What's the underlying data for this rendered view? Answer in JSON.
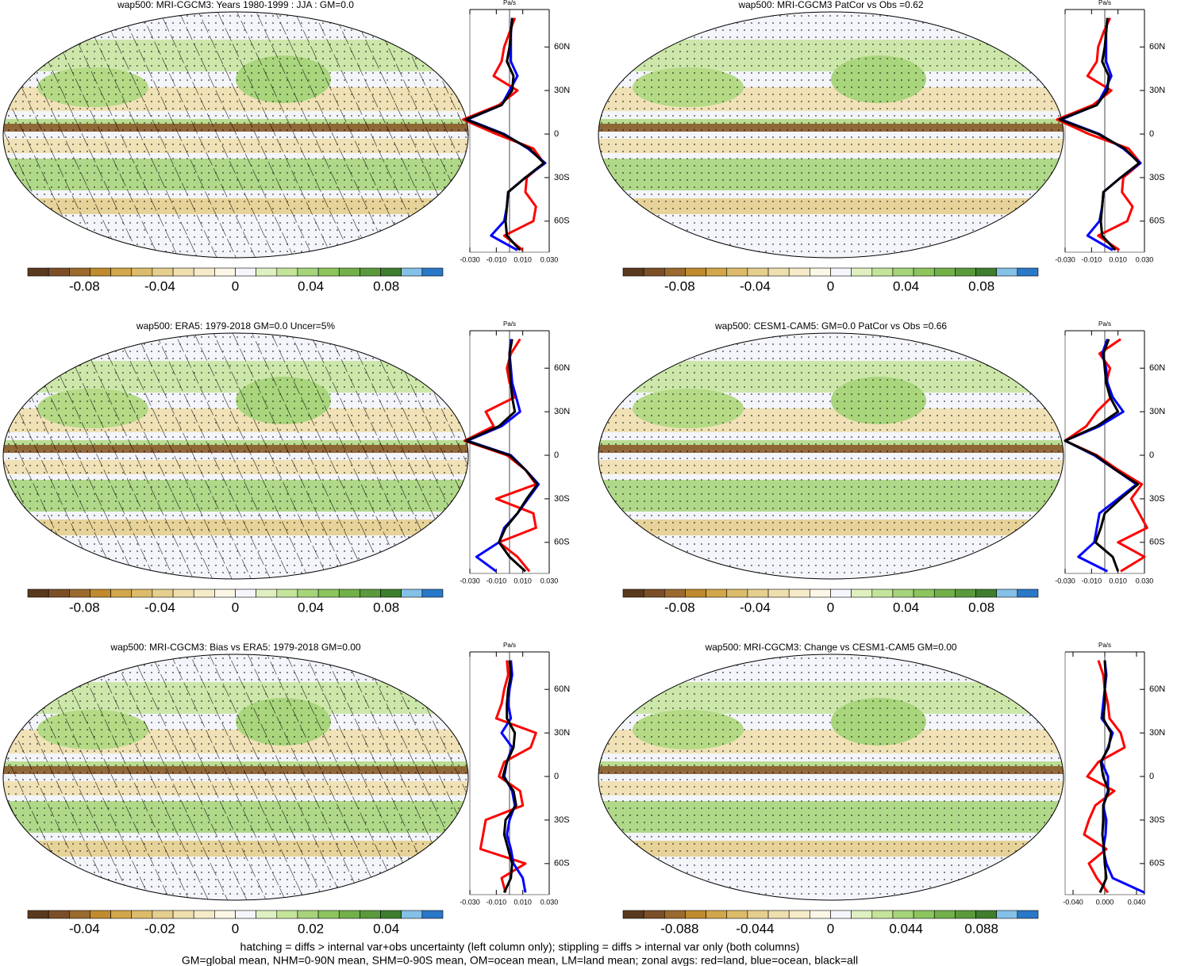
{
  "chart_data": [
    {
      "type": "map",
      "title": "wap500: MRI-CGCM3: Years 1980-1999 : JJA : GM=0.0",
      "hatching": true,
      "stippling": true,
      "colorbar": {
        "lim": [
          -0.11,
          0.11
        ],
        "ticks": [
          -0.08,
          -0.04,
          0,
          0.04,
          0.08
        ]
      },
      "profile": {
        "type": "line",
        "xlabel": "Pa/s",
        "xlim": [
          -0.03,
          0.03
        ],
        "xticks": [
          {
            "value": -0.03,
            "label": "-0.030"
          },
          {
            "value": -0.01,
            "label": "-0.010"
          },
          {
            "value": 0.01,
            "label": "0.010"
          },
          {
            "value": 0.03,
            "label": "0.030"
          }
        ],
        "ylim": [
          -81.4,
          85.8
        ],
        "yticks": [
          {
            "value": 60,
            "label": "60N"
          },
          {
            "value": 30,
            "label": "30N"
          },
          0,
          {
            "value": -30,
            "label": "30S"
          },
          {
            "value": -60,
            "label": "60S"
          }
        ],
        "lats": [
          80,
          70,
          60,
          50,
          40,
          30,
          20,
          10,
          0,
          -10,
          -20,
          -30,
          -40,
          -50,
          -60,
          -70,
          -80
        ],
        "series": [
          {
            "name": "land",
            "color": "#ff0000",
            "values": [
              0.004,
              0.0,
              -0.004,
              -0.006,
              -0.012,
              0.006,
              -0.008,
              -0.035,
              -0.01,
              0.018,
              0.026,
              0.013,
              0.012,
              0.02,
              0.018,
              -0.004,
              0.01
            ]
          },
          {
            "name": "ocean",
            "color": "#0000ff",
            "values": [
              0.002,
              0.001,
              0.001,
              0.001,
              0.006,
              0.0,
              -0.006,
              -0.032,
              -0.004,
              0.014,
              0.027,
              0.012,
              -0.001,
              -0.002,
              -0.004,
              -0.014,
              0.006
            ]
          },
          {
            "name": "all",
            "color": "#000000",
            "values": [
              0.002,
              0.001,
              0.0,
              -0.002,
              0.003,
              0.002,
              -0.006,
              -0.033,
              -0.005,
              0.015,
              0.026,
              0.012,
              -0.001,
              -0.002,
              -0.003,
              -0.002,
              0.008
            ]
          }
        ]
      }
    },
    {
      "type": "map",
      "title": "wap500: MRI-CGCM3 PatCor vs Obs =0.62",
      "hatching": false,
      "stippling": true,
      "colorbar": {
        "lim": [
          -0.11,
          0.11
        ],
        "ticks": [
          -0.08,
          -0.04,
          0,
          0.04,
          0.08
        ]
      },
      "profile": {
        "type": "line",
        "xlabel": "Pa/s",
        "xlim": [
          -0.03,
          0.03
        ],
        "xticks": [
          {
            "value": -0.03,
            "label": "-0.030"
          },
          {
            "value": -0.01,
            "label": "-0.010"
          },
          {
            "value": 0.01,
            "label": "0.010"
          },
          {
            "value": 0.03,
            "label": "0.030"
          }
        ],
        "ylim": [
          -81.4,
          85.8
        ],
        "yticks": [
          {
            "value": 60,
            "label": "60N"
          },
          {
            "value": 30,
            "label": "30N"
          },
          0,
          {
            "value": -30,
            "label": "30S"
          },
          {
            "value": -60,
            "label": "60S"
          }
        ],
        "lats": [
          80,
          70,
          60,
          50,
          40,
          30,
          20,
          10,
          0,
          -10,
          -20,
          -30,
          -40,
          -50,
          -60,
          -70,
          -80
        ],
        "series": [
          {
            "name": "land",
            "color": "#ff0000",
            "values": [
              0.004,
              -0.001,
              -0.005,
              -0.006,
              -0.013,
              0.005,
              -0.009,
              -0.036,
              -0.012,
              0.018,
              0.027,
              0.014,
              0.013,
              0.021,
              0.017,
              -0.005,
              0.011
            ]
          },
          {
            "name": "ocean",
            "color": "#0000ff",
            "values": [
              0.002,
              0.001,
              0.001,
              0.001,
              0.005,
              0.0,
              -0.006,
              -0.033,
              -0.004,
              0.014,
              0.027,
              0.012,
              -0.001,
              -0.002,
              -0.004,
              -0.013,
              0.006
            ]
          },
          {
            "name": "all",
            "color": "#000000",
            "values": [
              0.002,
              0.001,
              0.0,
              -0.002,
              0.003,
              0.002,
              -0.006,
              -0.034,
              -0.005,
              0.015,
              0.026,
              0.012,
              -0.001,
              -0.002,
              -0.003,
              -0.002,
              0.008
            ]
          }
        ]
      }
    },
    {
      "type": "map",
      "title": "wap500: ERA5: 1979-2018 GM=0.0 Uncer=5%",
      "hatching": true,
      "stippling": true,
      "colorbar": {
        "lim": [
          -0.11,
          0.11
        ],
        "ticks": [
          -0.08,
          -0.04,
          0,
          0.04,
          0.08
        ]
      },
      "profile": {
        "type": "line",
        "xlabel": "Pa/s",
        "xlim": [
          -0.03,
          0.03
        ],
        "xticks": [
          {
            "value": -0.03,
            "label": "-0.030"
          },
          {
            "value": -0.01,
            "label": "-0.010"
          },
          {
            "value": 0.01,
            "label": "0.010"
          },
          {
            "value": 0.03,
            "label": "0.030"
          }
        ],
        "ylim": [
          -81.4,
          85.8
        ],
        "yticks": [
          {
            "value": 60,
            "label": "60N"
          },
          {
            "value": 30,
            "label": "30N"
          },
          0,
          {
            "value": -30,
            "label": "30S"
          },
          {
            "value": -60,
            "label": "60S"
          }
        ],
        "lats": [
          80,
          70,
          60,
          50,
          40,
          30,
          20,
          10,
          0,
          -10,
          -20,
          -30,
          -40,
          -50,
          -60,
          -70,
          -80
        ],
        "series": [
          {
            "name": "land",
            "color": "#ff0000",
            "values": [
              0.008,
              0.001,
              -0.002,
              0.0,
              0.004,
              -0.018,
              -0.012,
              -0.034,
              -0.002,
              0.012,
              0.02,
              -0.01,
              0.018,
              0.02,
              -0.008,
              0.006,
              0.015
            ]
          },
          {
            "name": "ocean",
            "color": "#0000ff",
            "values": [
              0.001,
              0.0,
              0.001,
              0.002,
              0.005,
              0.008,
              -0.006,
              -0.032,
              0.001,
              0.012,
              0.022,
              0.014,
              0.006,
              -0.004,
              -0.008,
              -0.025,
              -0.01
            ]
          },
          {
            "name": "all",
            "color": "#000000",
            "values": [
              0.002,
              0.0,
              0.0,
              0.001,
              0.002,
              0.004,
              -0.008,
              -0.033,
              0.0,
              0.012,
              0.021,
              0.013,
              0.006,
              -0.003,
              -0.008,
              0.0,
              0.012
            ]
          }
        ]
      }
    },
    {
      "type": "map",
      "title": "wap500: CESM1-CAM5: GM=0.0 PatCor vs Obs =0.66",
      "hatching": false,
      "stippling": true,
      "colorbar": {
        "lim": [
          -0.11,
          0.11
        ],
        "ticks": [
          -0.08,
          -0.04,
          0,
          0.04,
          0.08
        ]
      },
      "profile": {
        "type": "line",
        "xlabel": "Pa/s",
        "xlim": [
          -0.03,
          0.03
        ],
        "xticks": [
          {
            "value": -0.03,
            "label": "-0.030"
          },
          {
            "value": -0.01,
            "label": "-0.010"
          },
          {
            "value": 0.01,
            "label": "0.010"
          },
          {
            "value": 0.03,
            "label": "0.030"
          }
        ],
        "ylim": [
          -81.4,
          85.8
        ],
        "yticks": [
          {
            "value": 60,
            "label": "60N"
          },
          {
            "value": 30,
            "label": "30N"
          },
          0,
          {
            "value": -30,
            "label": "30S"
          },
          {
            "value": -60,
            "label": "60S"
          }
        ],
        "lats": [
          80,
          70,
          60,
          50,
          40,
          30,
          20,
          10,
          0,
          -10,
          -20,
          -30,
          -40,
          -50,
          -60,
          -70,
          -80
        ],
        "series": [
          {
            "name": "land",
            "color": "#ff0000",
            "values": [
              0.012,
              -0.004,
              0.004,
              0.001,
              0.005,
              -0.006,
              -0.014,
              -0.03,
              -0.006,
              0.01,
              0.028,
              0.02,
              0.026,
              0.032,
              0.01,
              0.03,
              0.012
            ]
          },
          {
            "name": "ocean",
            "color": "#0000ff",
            "values": [
              0.002,
              -0.002,
              0.001,
              0.002,
              0.006,
              0.014,
              -0.004,
              -0.03,
              -0.008,
              0.008,
              0.024,
              0.01,
              -0.004,
              -0.006,
              -0.008,
              -0.02,
              0.002
            ]
          },
          {
            "name": "all",
            "color": "#000000",
            "values": [
              0.003,
              -0.001,
              0.0,
              0.001,
              0.004,
              0.01,
              -0.006,
              -0.03,
              -0.007,
              0.008,
              0.025,
              0.012,
              0.0,
              -0.003,
              -0.007,
              0.006,
              0.01
            ]
          }
        ]
      }
    },
    {
      "type": "map",
      "title": "wap500: MRI-CGCM3: Bias vs ERA5: 1979-2018 GM=0.00",
      "hatching": true,
      "stippling": true,
      "colorbar": {
        "lim": [
          -0.055,
          0.055
        ],
        "ticks": [
          -0.04,
          -0.02,
          0,
          0.02,
          0.04
        ]
      },
      "profile": {
        "type": "line",
        "xlabel": "Pa/s",
        "xlim": [
          -0.03,
          0.03
        ],
        "xticks": [
          {
            "value": -0.03,
            "label": "-0.030"
          },
          {
            "value": -0.01,
            "label": "-0.010"
          },
          {
            "value": 0.01,
            "label": "0.010"
          },
          {
            "value": 0.03,
            "label": "0.030"
          }
        ],
        "ylim": [
          -81.4,
          85.8
        ],
        "yticks": [
          {
            "value": 60,
            "label": "60N"
          },
          {
            "value": 30,
            "label": "30N"
          },
          0,
          {
            "value": -30,
            "label": "30S"
          },
          {
            "value": -60,
            "label": "60S"
          }
        ],
        "lats": [
          80,
          70,
          60,
          50,
          40,
          30,
          20,
          10,
          0,
          -10,
          -20,
          -30,
          -40,
          -50,
          -60,
          -70,
          -80
        ],
        "series": [
          {
            "name": "land",
            "color": "#ff0000",
            "values": [
              -0.002,
              -0.001,
              -0.004,
              -0.006,
              -0.01,
              0.02,
              0.016,
              -0.004,
              -0.008,
              0.008,
              0.01,
              -0.018,
              -0.02,
              -0.022,
              0.012,
              -0.006,
              -0.003
            ]
          },
          {
            "name": "ocean",
            "color": "#0000ff",
            "values": [
              0.001,
              0.002,
              0.0,
              -0.001,
              0.001,
              -0.006,
              0.002,
              -0.002,
              -0.004,
              0.002,
              0.004,
              0.0,
              -0.002,
              0.001,
              0.003,
              0.01,
              0.012
            ]
          },
          {
            "name": "all",
            "color": "#000000",
            "values": [
              0.0,
              0.001,
              -0.001,
              -0.002,
              -0.002,
              0.004,
              0.003,
              -0.002,
              -0.005,
              0.003,
              0.005,
              -0.003,
              -0.004,
              -0.001,
              0.002,
              0.001,
              -0.004
            ]
          }
        ]
      }
    },
    {
      "type": "map",
      "title": "wap500: MRI-CGCM3: Change vs CESM1-CAM5 GM=0.00",
      "hatching": false,
      "stippling": true,
      "colorbar": {
        "lim": [
          -0.121,
          0.121
        ],
        "ticks": [
          -0.088,
          -0.044,
          0,
          0.044,
          0.088
        ]
      },
      "profile": {
        "type": "line",
        "xlabel": "Pa/s",
        "xlim": [
          -0.05,
          0.05
        ],
        "xticks": [
          {
            "value": -0.04,
            "label": "-0.040"
          },
          {
            "value": 0,
            "label": "0.000"
          },
          {
            "value": 0.04,
            "label": "0.040"
          }
        ],
        "ylim": [
          -81.4,
          85.8
        ],
        "yticks": [
          {
            "value": 60,
            "label": "60N"
          },
          {
            "value": 30,
            "label": "30N"
          },
          0,
          {
            "value": -30,
            "label": "30S"
          },
          {
            "value": -60,
            "label": "60S"
          }
        ],
        "lats": [
          80,
          70,
          60,
          50,
          40,
          30,
          20,
          10,
          0,
          -10,
          -20,
          -30,
          -40,
          -50,
          -60,
          -70,
          -80
        ],
        "series": [
          {
            "name": "land",
            "color": "#ff0000",
            "values": [
              -0.008,
              -0.002,
              0.0,
              0.004,
              0.006,
              0.02,
              0.025,
              -0.008,
              -0.022,
              0.012,
              -0.012,
              -0.02,
              -0.026,
              0.002,
              -0.02,
              -0.01,
              0.004
            ]
          },
          {
            "name": "ocean",
            "color": "#0000ff",
            "values": [
              0.0,
              0.002,
              0.0,
              -0.002,
              -0.004,
              0.01,
              0.004,
              -0.004,
              0.004,
              0.004,
              -0.002,
              0.002,
              0.001,
              -0.002,
              0.002,
              0.01,
              0.05
            ]
          },
          {
            "name": "all",
            "color": "#000000",
            "values": [
              0.0,
              0.001,
              0.0,
              0.0,
              -0.002,
              0.008,
              0.005,
              -0.005,
              -0.002,
              0.005,
              -0.002,
              -0.002,
              -0.003,
              -0.001,
              0.0,
              0.002,
              -0.006
            ]
          }
        ]
      }
    }
  ],
  "colorbar_colors": [
    "#5a3a1e",
    "#7a4f28",
    "#9a6a2e",
    "#c08a2e",
    "#d2a64a",
    "#dcbc6a",
    "#e6cf8e",
    "#efdfae",
    "#f5ebc8",
    "#fbf6e6",
    "#f4f6fb",
    "#dff0c0",
    "#c4e49a",
    "#a6d47a",
    "#8cc45e",
    "#72b04a",
    "#5a9a3c",
    "#3e7e2e",
    "#84c0e8",
    "#2a78c8"
  ],
  "caption": [
    "hatching = diffs > internal var+obs uncertainty (left column only); stippling = diffs > internal var only (both columns)",
    "GM=global mean, NHM=0-90N mean, SHM=0-90S mean, OM=ocean mean, LM=land mean; zonal avgs: red=land, blue=ocean, black=all"
  ]
}
